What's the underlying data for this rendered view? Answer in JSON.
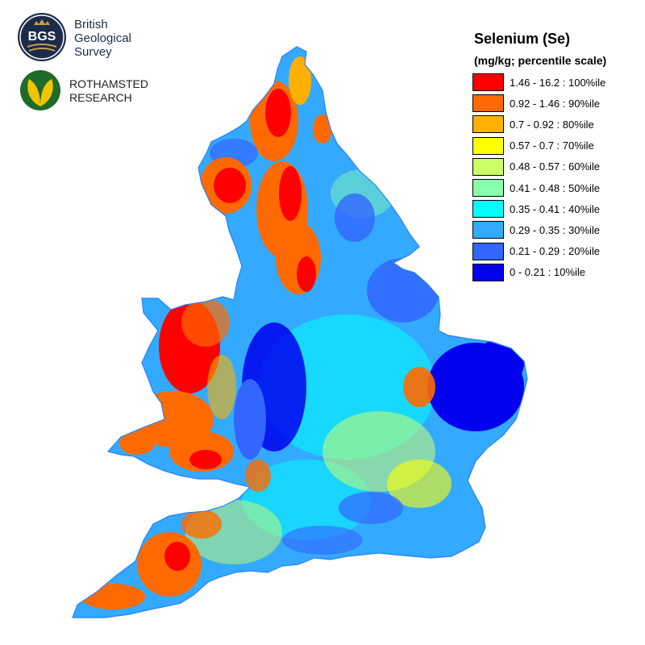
{
  "logos": {
    "bgs": {
      "seal_text": "BGS",
      "lines": [
        "British",
        "Geological",
        "Survey"
      ]
    },
    "rothamsted": {
      "lines": [
        "ROTHAMSTED",
        "RESEARCH"
      ]
    }
  },
  "legend": {
    "title": "Selenium (Se)",
    "subtitle": "(mg/kg; percentile scale)",
    "items": [
      {
        "label": "1.46 - 16.2 : 100%ile",
        "color": "#ff0000"
      },
      {
        "label": "0.92 - 1.46 : 90%ile",
        "color": "#ff6a00"
      },
      {
        "label": "0.7 - 0.92 : 80%ile",
        "color": "#ffb000"
      },
      {
        "label": "0.57 - 0.7 : 70%ile",
        "color": "#ffff00"
      },
      {
        "label": "0.48 - 0.57 : 60%ile",
        "color": "#ccff66"
      },
      {
        "label": "0.41 - 0.48 : 50%ile",
        "color": "#88ffaa"
      },
      {
        "label": "0.35 - 0.41 : 40%ile",
        "color": "#00ffff"
      },
      {
        "label": "0.29 - 0.35 : 30%ile",
        "color": "#33aaff"
      },
      {
        "label": "0.21 - 0.29 : 20%ile",
        "color": "#3366ff"
      },
      {
        "label": "0 - 0.21 : 10%ile",
        "color": "#0000ee"
      }
    ]
  }
}
